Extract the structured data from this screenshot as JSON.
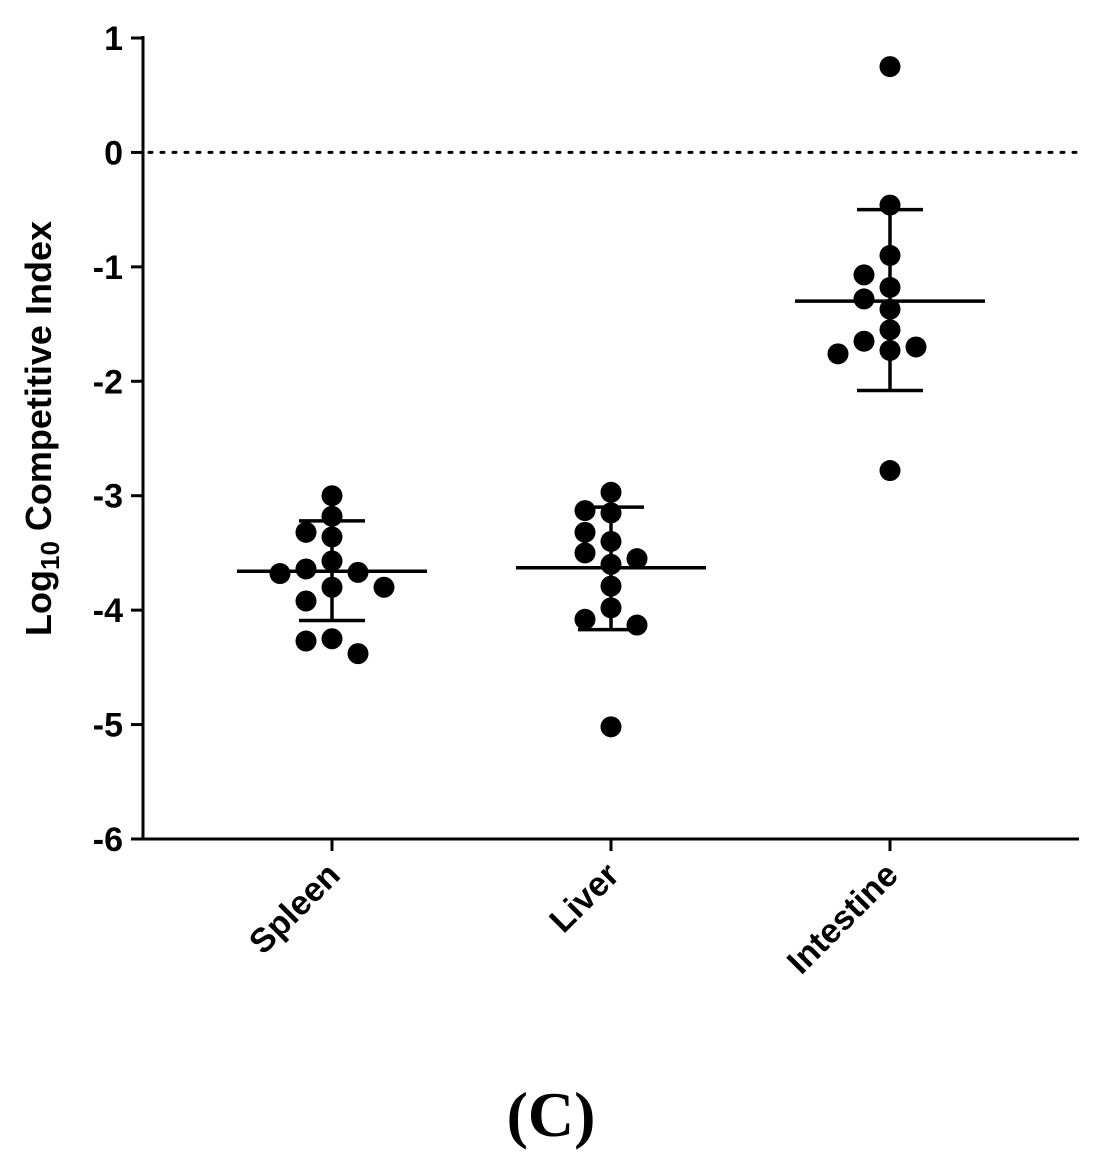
{
  "chart_data": {
    "type": "scatter",
    "title": "",
    "ylabel_prefix": "Log",
    "ylabel_subscript": "10",
    "ylabel_suffix": " Competitive Index",
    "ylim": [
      -6,
      1
    ],
    "yticks": [
      "1",
      "0",
      "-1",
      "-2",
      "-3",
      "-4",
      "-5",
      "-6"
    ],
    "reference_line": {
      "y": 0,
      "style": "dotted"
    },
    "categories": [
      "Spleen",
      "Liver",
      "Intestine"
    ],
    "series": [
      {
        "name": "Spleen",
        "points": [
          -3.0,
          -3.18,
          -3.32,
          -3.36,
          -3.57,
          -3.64,
          -3.67,
          -3.68,
          -3.8,
          -3.8,
          -3.92,
          -4.25,
          -4.27,
          -4.38
        ],
        "mean": -3.66,
        "sd_upper": -3.22,
        "sd_lower": -4.09
      },
      {
        "name": "Liver",
        "points": [
          -2.97,
          -3.13,
          -3.15,
          -3.32,
          -3.4,
          -3.5,
          -3.55,
          -3.6,
          -3.79,
          -3.98,
          -4.08,
          -4.13,
          -5.02
        ],
        "mean": -3.63,
        "sd_upper": -3.1,
        "sd_lower": -4.17
      },
      {
        "name": "Intestine",
        "points": [
          0.75,
          -0.46,
          -0.9,
          -1.07,
          -1.18,
          -1.28,
          -1.37,
          -1.55,
          -1.65,
          -1.7,
          -1.73,
          -1.76,
          -2.78
        ],
        "mean": -1.3,
        "sd_upper": -0.5,
        "sd_lower": -2.08
      }
    ]
  },
  "panel_label": "(C)"
}
